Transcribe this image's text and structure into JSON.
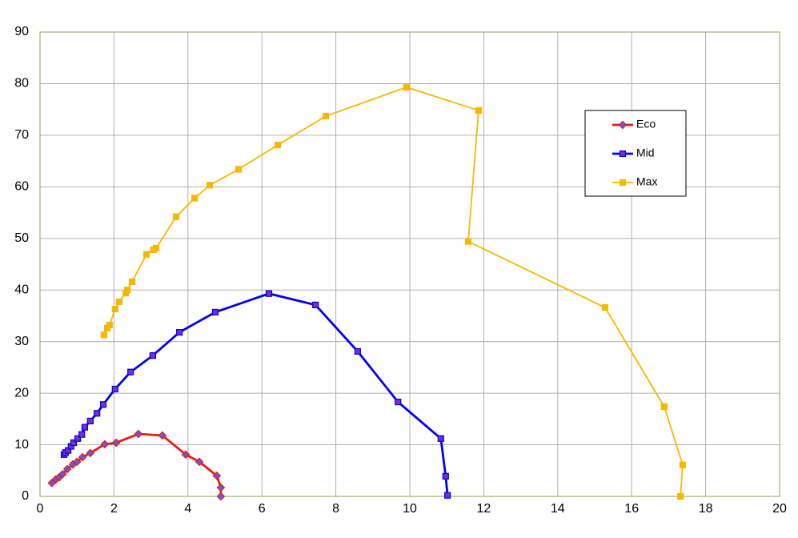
{
  "chart_data": {
    "type": "line",
    "xlim": [
      0,
      20
    ],
    "xticks": [
      0,
      2,
      4,
      6,
      8,
      10,
      12,
      14,
      16,
      18,
      20
    ],
    "ylim": [
      0,
      90
    ],
    "yticks": [
      0,
      10,
      20,
      30,
      40,
      50,
      60,
      70,
      80,
      90
    ],
    "grid": true,
    "legend": "upper-right",
    "series": [
      {
        "name": "Eco",
        "color": "#e41a1c",
        "marker": "diamond",
        "x": [
          0.32,
          0.43,
          0.52,
          0.61,
          0.74,
          0.89,
          1.0,
          1.15,
          1.36,
          1.75,
          2.06,
          2.66,
          3.31,
          3.94,
          4.31,
          4.78,
          4.89,
          4.89
        ],
        "values": [
          2.6,
          3.3,
          3.7,
          4.3,
          5.3,
          6.2,
          6.7,
          7.6,
          8.4,
          10.1,
          10.4,
          12.1,
          11.8,
          8.1,
          6.7,
          4.0,
          1.7,
          0
        ]
      },
      {
        "name": "Mid",
        "color": "#0000ee",
        "marker": "square",
        "x": [
          0.65,
          0.69,
          0.76,
          0.84,
          0.91,
          1.02,
          1.13,
          1.21,
          1.36,
          1.54,
          1.71,
          2.03,
          2.45,
          3.05,
          3.77,
          4.74,
          6.19,
          7.45,
          8.59,
          9.68,
          10.84,
          10.97,
          11.02
        ],
        "values": [
          8.1,
          8.5,
          8.9,
          9.7,
          10.4,
          11.2,
          12.0,
          13.4,
          14.6,
          16.1,
          17.8,
          20.8,
          24.1,
          27.3,
          31.8,
          35.7,
          39.3,
          37.1,
          28.1,
          18.3,
          11.2,
          3.9,
          0.2
        ]
      },
      {
        "name": "Max",
        "color": "#f5b800",
        "marker": "square",
        "x": [
          1.73,
          1.82,
          1.88,
          2.03,
          2.14,
          2.32,
          2.36,
          2.49,
          2.88,
          3.07,
          3.14,
          3.68,
          4.18,
          4.59,
          5.37,
          6.43,
          7.73,
          9.91,
          11.86,
          11.58,
          15.28,
          16.88,
          17.38,
          17.32
        ],
        "values": [
          31.3,
          32.6,
          33.2,
          36.3,
          37.7,
          39.4,
          40.0,
          41.6,
          46.9,
          47.8,
          48.1,
          54.2,
          57.8,
          60.3,
          63.4,
          68.1,
          73.7,
          79.3,
          74.8,
          49.4,
          36.6,
          17.4,
          6.1,
          0
        ]
      }
    ]
  }
}
